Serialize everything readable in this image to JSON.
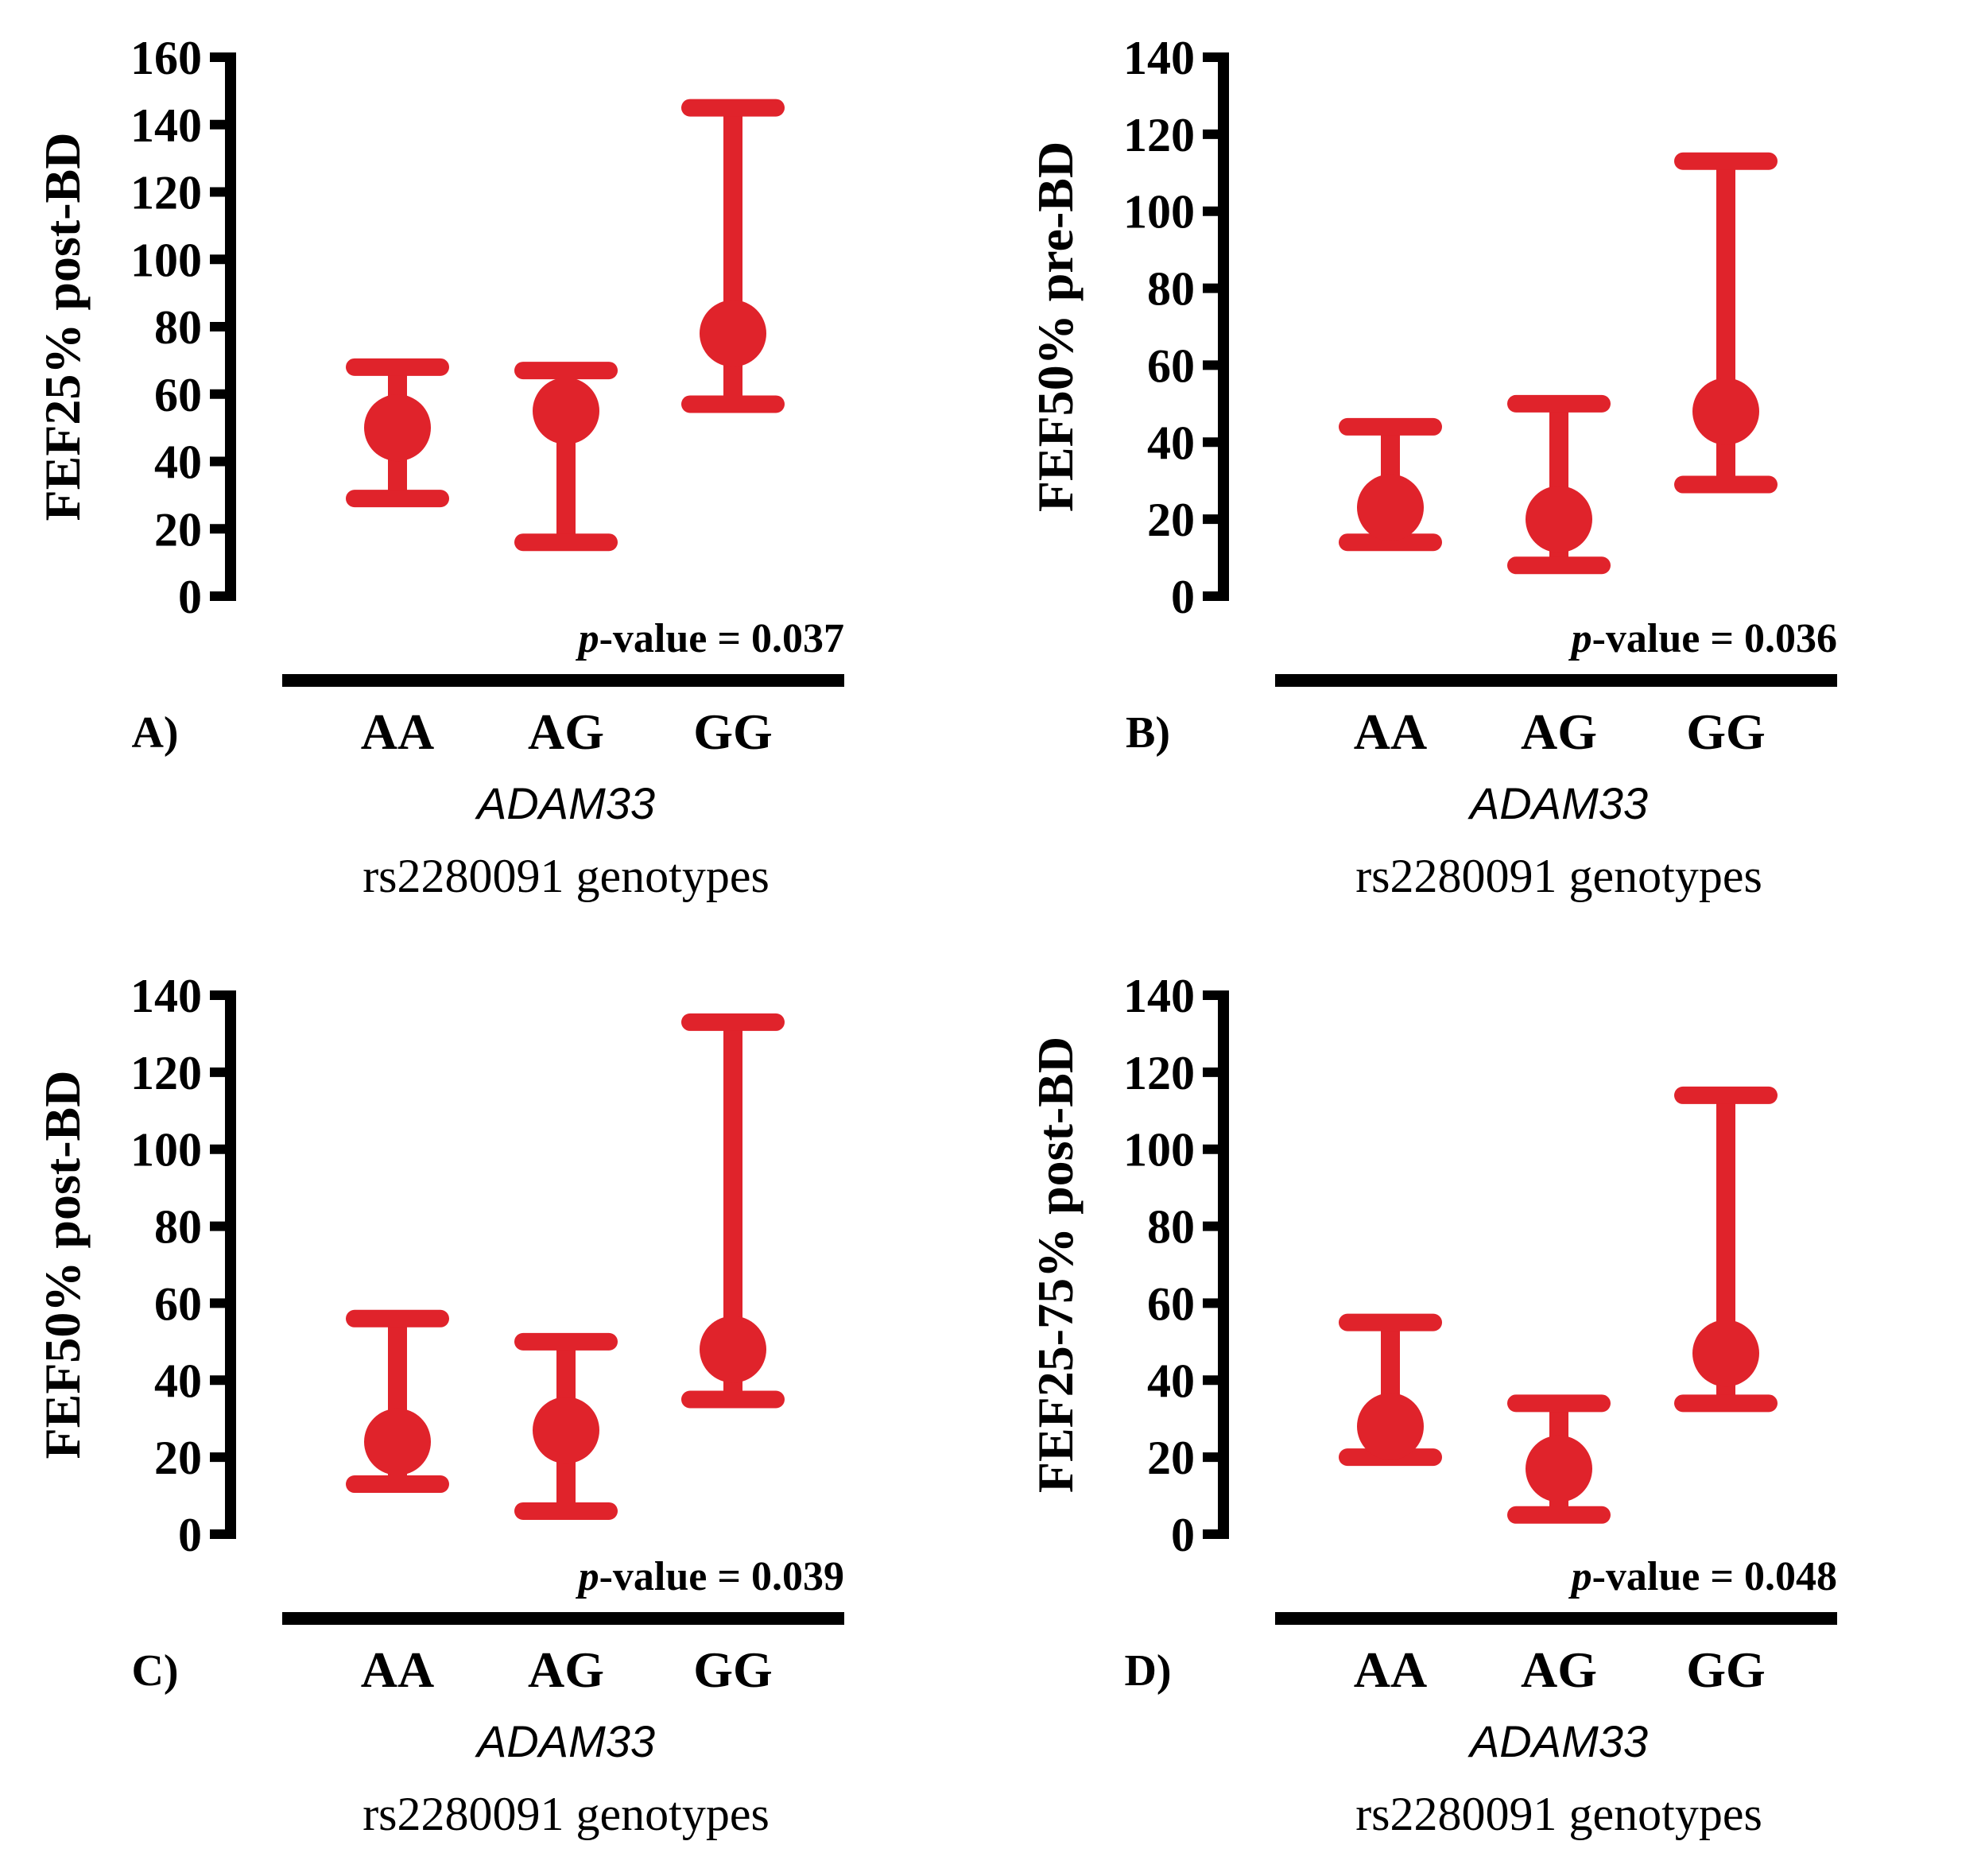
{
  "style": {
    "mark_color": "#e0232b",
    "axis_color": "#000000"
  },
  "chart_data": [
    {
      "type": "errorbar",
      "panel": "A)",
      "ylabel": "FEF25% post-BD",
      "ylim": [
        0,
        160
      ],
      "yticks": [
        0,
        20,
        40,
        60,
        80,
        100,
        120,
        140,
        160
      ],
      "categories": [
        "AA",
        "AG",
        "GG"
      ],
      "median": [
        50,
        55,
        78
      ],
      "lower": [
        29,
        16,
        57
      ],
      "upper": [
        68,
        67,
        145
      ],
      "p_label": "-value = 0.037",
      "p_prefix": "p",
      "gene": "ADAM33",
      "xlabel": "rs2280091 genotypes"
    },
    {
      "type": "errorbar",
      "panel": "B)",
      "ylabel": "FEF50% pre-BD",
      "ylim": [
        0,
        140
      ],
      "yticks": [
        0,
        20,
        40,
        60,
        80,
        100,
        120,
        140
      ],
      "categories": [
        "AA",
        "AG",
        "GG"
      ],
      "median": [
        23,
        20,
        48
      ],
      "lower": [
        14,
        8,
        29
      ],
      "upper": [
        44,
        50,
        113
      ],
      "p_label": "-value = 0.036",
      "p_prefix": "p",
      "gene": "ADAM33",
      "xlabel": "rs2280091 genotypes"
    },
    {
      "type": "errorbar",
      "panel": "C)",
      "ylabel": "FEF50% post-BD",
      "ylim": [
        0,
        140
      ],
      "yticks": [
        0,
        20,
        40,
        60,
        80,
        100,
        120,
        140
      ],
      "categories": [
        "AA",
        "AG",
        "GG"
      ],
      "median": [
        24,
        27,
        48
      ],
      "lower": [
        13,
        6,
        35
      ],
      "upper": [
        56,
        50,
        133
      ],
      "p_label": "-value = 0.039",
      "p_prefix": "p",
      "gene": "ADAM33",
      "xlabel": "rs2280091 genotypes"
    },
    {
      "type": "errorbar",
      "panel": "D)",
      "ylabel": "FEF25-75% post-BD",
      "ylim": [
        0,
        140
      ],
      "yticks": [
        0,
        20,
        40,
        60,
        80,
        100,
        120,
        140
      ],
      "categories": [
        "AA",
        "AG",
        "GG"
      ],
      "median": [
        28,
        17,
        47
      ],
      "lower": [
        20,
        5,
        34
      ],
      "upper": [
        55,
        34,
        114
      ],
      "p_label": "-value = 0.048",
      "p_prefix": "p",
      "gene": "ADAM33",
      "xlabel": "rs2280091 genotypes"
    }
  ]
}
